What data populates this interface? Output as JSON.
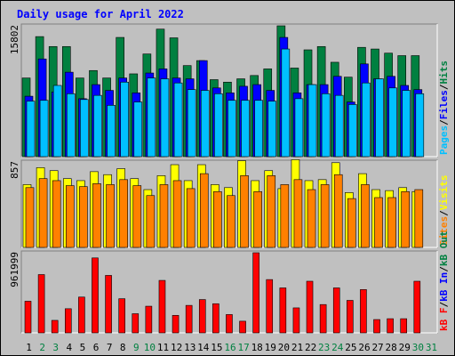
{
  "chart_data": {
    "type": "bar",
    "title": "Daily usage for April 2022",
    "categories": [
      "1",
      "2",
      "3",
      "4",
      "5",
      "6",
      "7",
      "8",
      "9",
      "10",
      "11",
      "12",
      "13",
      "14",
      "15",
      "16",
      "17",
      "18",
      "19",
      "20",
      "21",
      "22",
      "23",
      "24",
      "25",
      "26",
      "27",
      "28",
      "29",
      "30",
      "31"
    ],
    "weekend_days": [
      "2",
      "3",
      "9",
      "10",
      "16",
      "17",
      "23",
      "24",
      "30",
      "31"
    ],
    "panels": [
      {
        "name": "hits",
        "ymax_label": "15802",
        "ymax": 15802,
        "axis_labels": [
          "Pages",
          "Files",
          "Hits"
        ],
        "series": [
          {
            "name": "Hits",
            "color": "#008040",
            "values": [
              9500,
              14500,
              13300,
              13300,
              9500,
              10400,
              9500,
              14400,
              10000,
              12400,
              15402,
              14350,
              11000,
              11600,
              9300,
              9000,
              9400,
              9800,
              10600,
              15802,
              10700,
              12900,
              13300,
              11400,
              9600,
              13200,
              13000,
              12500,
              12200,
              12200,
              null
            ]
          },
          {
            "name": "Files",
            "color": "#0000ff",
            "values": [
              7300,
              11800,
              7800,
              10200,
              7000,
              8700,
              8000,
              9500,
              7700,
              10100,
              10600,
              9500,
              9400,
              11600,
              8300,
              7700,
              8500,
              8700,
              8000,
              14400,
              7700,
              8700,
              8700,
              9700,
              6600,
              11200,
              9400,
              9700,
              8600,
              8100,
              null
            ]
          },
          {
            "name": "Pages",
            "color": "#00c0ff",
            "values": [
              6700,
              6800,
              8600,
              7600,
              6900,
              7400,
              6200,
              9000,
              6600,
              9500,
              9400,
              8900,
              8100,
              8000,
              7600,
              6800,
              6800,
              6800,
              6700,
              13000,
              7000,
              8700,
              7600,
              7400,
              6300,
              8900,
              9400,
              8300,
              8000,
              7600,
              null
            ]
          }
        ]
      },
      {
        "name": "visits",
        "ymax_label": "857",
        "ymax": 857,
        "axis_labels": [
          "Sites",
          "Visits"
        ],
        "series": [
          {
            "name": "Visits",
            "color": "#ffff00",
            "values": [
              630,
              800,
              770,
              690,
              670,
              760,
              730,
              790,
              690,
              580,
              720,
              830,
              670,
              830,
              630,
              600,
              870,
              670,
              770,
              590,
              880,
              670,
              680,
              850,
              550,
              740,
              580,
              570,
              600,
              560,
              null
            ]
          },
          {
            "name": "Sites",
            "color": "#ff8000",
            "values": [
              600,
              690,
              670,
              620,
              610,
              640,
              630,
              680,
              620,
              520,
              630,
              670,
              590,
              740,
              560,
              520,
              720,
              560,
              720,
              630,
              680,
              580,
              630,
              730,
              490,
              630,
              500,
              500,
              560,
              580,
              null
            ]
          }
        ]
      },
      {
        "name": "kbytes",
        "ymax_label": "961999",
        "ymax": 961999,
        "axis_labels": [
          "kB F",
          "kB In",
          "kB Out"
        ],
        "series": [
          {
            "name": "kB F",
            "color": "#ff0000",
            "values": [
              380000,
              700000,
              150000,
              290000,
              430000,
              900000,
              690000,
              410000,
              230000,
              320000,
              630000,
              210000,
              330000,
              400000,
              350000,
              220000,
              140000,
              961999,
              640000,
              540000,
              300000,
              620000,
              340000,
              540000,
              390000,
              520000,
              160000,
              170000,
              170000,
              620000,
              null
            ]
          }
        ]
      }
    ]
  }
}
